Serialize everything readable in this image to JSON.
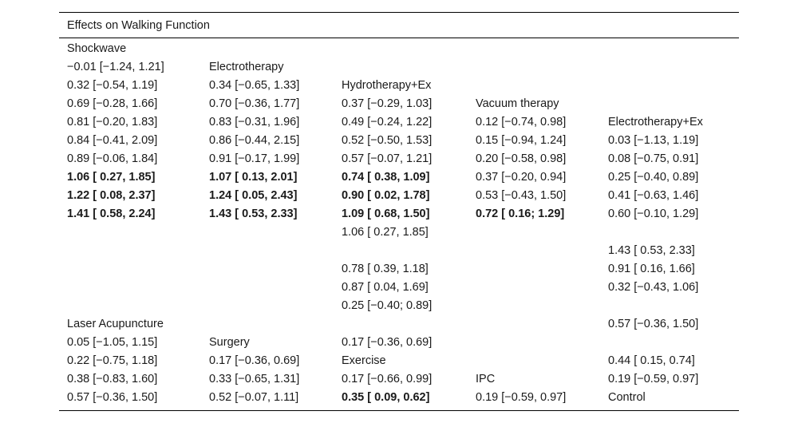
{
  "table": {
    "title": "Effects on Walking Function",
    "cells": [
      {
        "r": 0,
        "c": 0,
        "t": "Shockwave"
      },
      {
        "r": 1,
        "c": 0,
        "t": "−0.01 [−1.24, 1.21]"
      },
      {
        "r": 1,
        "c": 1,
        "t": "Electrotherapy"
      },
      {
        "r": 2,
        "c": 0,
        "t": "0.32 [−0.54, 1.19]"
      },
      {
        "r": 2,
        "c": 1,
        "t": "0.34 [−0.65, 1.33]"
      },
      {
        "r": 2,
        "c": 2,
        "t": "Hydrotherapy+Ex"
      },
      {
        "r": 3,
        "c": 0,
        "t": "0.69 [−0.28, 1.66]"
      },
      {
        "r": 3,
        "c": 1,
        "t": "0.70 [−0.36, 1.77]"
      },
      {
        "r": 3,
        "c": 2,
        "t": "0.37 [−0.29, 1.03]"
      },
      {
        "r": 3,
        "c": 3,
        "t": "Vacuum therapy"
      },
      {
        "r": 4,
        "c": 0,
        "t": "0.81 [−0.20, 1.83]"
      },
      {
        "r": 4,
        "c": 1,
        "t": "0.83 [−0.31, 1.96]"
      },
      {
        "r": 4,
        "c": 2,
        "t": "0.49 [−0.24, 1.22]"
      },
      {
        "r": 4,
        "c": 3,
        "t": "0.12 [−0.74, 0.98]"
      },
      {
        "r": 4,
        "c": 4,
        "t": "Electrotherapy+Ex"
      },
      {
        "r": 5,
        "c": 0,
        "t": "0.84 [−0.41, 2.09]"
      },
      {
        "r": 5,
        "c": 1,
        "t": "0.86 [−0.44, 2.15]"
      },
      {
        "r": 5,
        "c": 2,
        "t": "0.52 [−0.50, 1.53]"
      },
      {
        "r": 5,
        "c": 3,
        "t": "0.15 [−0.94, 1.24]"
      },
      {
        "r": 5,
        "c": 4,
        "t": "0.03 [−1.13, 1.19]"
      },
      {
        "r": 6,
        "c": 0,
        "t": "0.89 [−0.06, 1.84]"
      },
      {
        "r": 6,
        "c": 1,
        "t": "0.91 [−0.17, 1.99]"
      },
      {
        "r": 6,
        "c": 2,
        "t": "0.57 [−0.07, 1.21]"
      },
      {
        "r": 6,
        "c": 3,
        "t": "0.20 [−0.58, 0.98]"
      },
      {
        "r": 6,
        "c": 4,
        "t": "0.08 [−0.75, 0.91]"
      },
      {
        "r": 7,
        "c": 0,
        "t": "1.06 [ 0.27, 1.85]",
        "b": true
      },
      {
        "r": 7,
        "c": 1,
        "t": "1.07 [ 0.13, 2.01]",
        "b": true
      },
      {
        "r": 7,
        "c": 2,
        "t": "0.74 [ 0.38, 1.09]",
        "b": true
      },
      {
        "r": 7,
        "c": 3,
        "t": "0.37 [−0.20, 0.94]"
      },
      {
        "r": 7,
        "c": 4,
        "t": "0.25 [−0.40, 0.89]"
      },
      {
        "r": 8,
        "c": 0,
        "t": "1.22 [ 0.08, 2.37]",
        "b": true
      },
      {
        "r": 8,
        "c": 1,
        "t": "1.24 [ 0.05, 2.43]",
        "b": true
      },
      {
        "r": 8,
        "c": 2,
        "t": "0.90 [ 0.02, 1.78]",
        "b": true
      },
      {
        "r": 8,
        "c": 3,
        "t": "0.53 [−0.43, 1.50]"
      },
      {
        "r": 8,
        "c": 4,
        "t": "0.41 [−0.63, 1.46]"
      },
      {
        "r": 9,
        "c": 0,
        "t": "1.41 [ 0.58, 2.24]",
        "b": true
      },
      {
        "r": 9,
        "c": 1,
        "t": "1.43 [ 0.53, 2.33]",
        "b": true
      },
      {
        "r": 9,
        "c": 2,
        "t": "1.09 [ 0.68, 1.50]",
        "b": true
      },
      {
        "r": 9,
        "c": 3,
        "t": "0.72 [ 0.16; 1.29]",
        "b": true
      },
      {
        "r": 9,
        "c": 4,
        "t": "0.60 [−0.10, 1.29]"
      },
      {
        "r": 10,
        "c": 2,
        "t": "1.06 [ 0.27, 1.85]"
      },
      {
        "r": 11,
        "c": 4,
        "t": "1.43 [ 0.53, 2.33]"
      },
      {
        "r": 12,
        "c": 2,
        "t": "0.78 [ 0.39, 1.18]"
      },
      {
        "r": 12,
        "c": 4,
        "t": "0.91 [ 0.16, 1.66]"
      },
      {
        "r": 13,
        "c": 2,
        "t": "0.87 [ 0.04, 1.69]"
      },
      {
        "r": 13,
        "c": 4,
        "t": "0.32 [−0.43, 1.06]"
      },
      {
        "r": 14,
        "c": 2,
        "t": "0.25 [−0.40; 0.89]"
      },
      {
        "r": 15,
        "c": 0,
        "t": "Laser Acupuncture"
      },
      {
        "r": 15,
        "c": 4,
        "t": "0.57 [−0.36, 1.50]"
      },
      {
        "r": 16,
        "c": 0,
        "t": "0.05 [−1.05, 1.15]"
      },
      {
        "r": 16,
        "c": 1,
        "t": "Surgery"
      },
      {
        "r": 16,
        "c": 2,
        "t": "0.17 [−0.36, 0.69]"
      },
      {
        "r": 17,
        "c": 0,
        "t": "0.22 [−0.75, 1.18]"
      },
      {
        "r": 17,
        "c": 1,
        "t": "0.17 [−0.36, 0.69]"
      },
      {
        "r": 17,
        "c": 2,
        "t": "Exercise"
      },
      {
        "r": 17,
        "c": 4,
        "t": "0.44 [ 0.15, 0.74]"
      },
      {
        "r": 18,
        "c": 0,
        "t": "0.38 [−0.83, 1.60]"
      },
      {
        "r": 18,
        "c": 1,
        "t": "0.33 [−0.65, 1.31]"
      },
      {
        "r": 18,
        "c": 2,
        "t": "0.17 [−0.66, 0.99]"
      },
      {
        "r": 18,
        "c": 3,
        "t": "IPC"
      },
      {
        "r": 18,
        "c": 4,
        "t": "0.19 [−0.59, 0.97]"
      },
      {
        "r": 19,
        "c": 0,
        "t": "0.57 [−0.36, 1.50]"
      },
      {
        "r": 19,
        "c": 1,
        "t": "0.52 [−0.07, 1.11]"
      },
      {
        "r": 19,
        "c": 2,
        "t": "0.35 [ 0.09, 0.62]",
        "b": true
      },
      {
        "r": 19,
        "c": 3,
        "t": "0.19 [−0.59, 0.97]"
      },
      {
        "r": 19,
        "c": 4,
        "t": "Control"
      }
    ]
  }
}
